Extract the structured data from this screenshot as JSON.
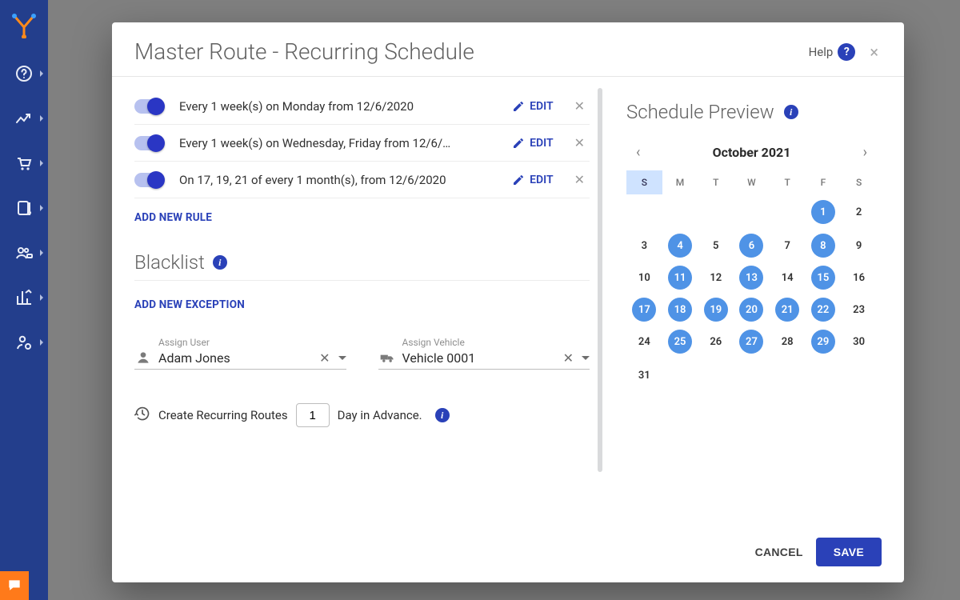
{
  "colors": {
    "sidebar_bg": "#233e8c",
    "accent": "#2a41b8",
    "toggle_knob": "#2a36c4",
    "toggle_track": "#b7c1ef",
    "day_on": "#4f93e6",
    "chat_bg": "#ff7a1a",
    "modal_bg": "#ffffff",
    "page_bg": "#808080"
  },
  "sidebar": {
    "logo": "route-y-logo",
    "items": [
      "help",
      "trends",
      "cart",
      "book",
      "fleet",
      "analytics",
      "user-settings"
    ],
    "chat": "chat-icon"
  },
  "modal": {
    "title": "Master Route - Recurring Schedule",
    "help_label": "Help",
    "close_glyph": "×"
  },
  "rules": [
    {
      "enabled": true,
      "text": "Every 1 week(s) on Monday from 12/6/2020",
      "edit": "EDIT"
    },
    {
      "enabled": true,
      "text": "Every 1 week(s) on Wednesday, Friday from 12/6/…",
      "edit": "EDIT"
    },
    {
      "enabled": true,
      "text": "On 17, 19, 21 of every 1 month(s), from 12/6/2020",
      "edit": "EDIT"
    }
  ],
  "add_rule_label": "ADD NEW RULE",
  "blacklist": {
    "title": "Blacklist",
    "add_label": "ADD NEW EXCEPTION"
  },
  "assign": {
    "user": {
      "label": "Assign User",
      "value": "Adam Jones"
    },
    "vehicle": {
      "label": "Assign Vehicle",
      "value": "Vehicle 0001"
    }
  },
  "advance": {
    "prefix": "Create Recurring Routes",
    "value": "1",
    "suffix": "Day in Advance."
  },
  "preview": {
    "title": "Schedule Preview",
    "month_label": "October 2021",
    "weekdays": [
      "S",
      "M",
      "T",
      "W",
      "T",
      "F",
      "S"
    ],
    "selected_weekday_index": 0,
    "first_weekday_index": 5,
    "days_in_month": 31,
    "highlighted_days": [
      1,
      4,
      6,
      8,
      11,
      13,
      15,
      17,
      18,
      19,
      20,
      21,
      22,
      25,
      27,
      29
    ]
  },
  "footer": {
    "cancel": "CANCEL",
    "save": "SAVE"
  }
}
